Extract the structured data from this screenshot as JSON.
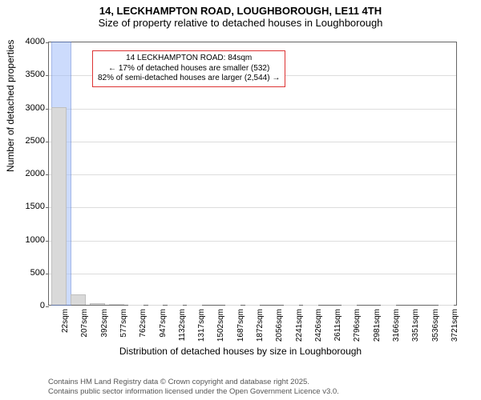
{
  "title": {
    "main": "14, LECKHAMPTON ROAD, LOUGHBOROUGH, LE11 4TH",
    "sub": "Size of property relative to detached houses in Loughborough",
    "main_fontsize": 13,
    "sub_fontsize": 13,
    "color": "#000000"
  },
  "chart": {
    "type": "histogram",
    "background_color": "#ffffff",
    "border_color": "#666666",
    "grid_color": "#dddddd",
    "bar_fill": "#d9d9d9",
    "bar_border": "#bfbfbf",
    "highlight_fill": "#a3bffa",
    "highlight_border": "#5a7fd6",
    "highlight_opacity": 0.55,
    "ylim": [
      0,
      4000
    ],
    "yticks": [
      0,
      500,
      1000,
      1500,
      2000,
      2500,
      3000,
      3500,
      4000
    ],
    "xcategories": [
      "22sqm",
      "207sqm",
      "392sqm",
      "577sqm",
      "762sqm",
      "947sqm",
      "1132sqm",
      "1317sqm",
      "1502sqm",
      "1687sqm",
      "1872sqm",
      "2056sqm",
      "2241sqm",
      "2426sqm",
      "2611sqm",
      "2796sqm",
      "2981sqm",
      "3166sqm",
      "3351sqm",
      "3536sqm",
      "3721sqm"
    ],
    "values": [
      3000,
      160,
      20,
      8,
      5,
      4,
      3,
      2,
      0,
      3,
      2,
      0,
      1,
      1,
      0,
      1,
      0,
      1,
      0,
      0,
      1
    ],
    "highlight": {
      "index_from": 0,
      "index_to": 1,
      "fraction": 0.34
    },
    "ylabel": "Number of detached properties",
    "xlabel": "Distribution of detached houses by size in Loughborough",
    "tick_fontsize": 11,
    "xlabel_fontsize": 12,
    "ylabel_fontsize": 12
  },
  "annotation": {
    "border_color": "#dd3333",
    "background_color": "#ffffff",
    "fontsize": 10,
    "lines": [
      "14 LECKHAMPTON ROAD: 84sqm",
      "← 17% of detached houses are smaller (532)",
      "82% of semi-detached houses are larger (2,544) →"
    ]
  },
  "footer": {
    "line1": "Contains HM Land Registry data © Crown copyright and database right 2025.",
    "line2": "Contains public sector information licensed under the Open Government Licence v3.0.",
    "color": "#555555",
    "fontsize": 9.5
  }
}
